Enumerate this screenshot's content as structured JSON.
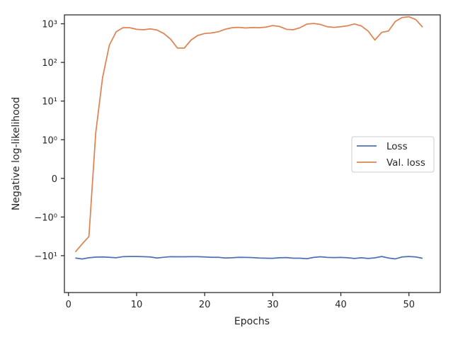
{
  "chart_data": {
    "type": "line",
    "xlabel": "Epochs",
    "ylabel": "Negative log-likelihood",
    "xlim": [
      -0.6,
      54.6
    ],
    "ylim": [
      -90,
      1700
    ],
    "yscale": "symlog",
    "linthresh": 1,
    "x_ticks": [
      0,
      10,
      20,
      30,
      40,
      50
    ],
    "x_tick_labels": [
      "0",
      "10",
      "20",
      "30",
      "40",
      "50"
    ],
    "y_ticks": [
      -10,
      -1,
      0,
      1,
      10,
      100,
      1000
    ],
    "y_tick_labels": [
      "−10¹",
      "−10⁰",
      "0",
      "10⁰",
      "10¹",
      "10²",
      "10³"
    ],
    "grid": false,
    "legend_position": "center-right",
    "colors": {
      "loss": "#4c72b0",
      "val_loss": "#dd8452",
      "axes": "#262626"
    },
    "x": [
      1,
      2,
      3,
      4,
      5,
      6,
      7,
      8,
      9,
      10,
      11,
      12,
      13,
      14,
      15,
      16,
      17,
      18,
      19,
      20,
      21,
      22,
      23,
      24,
      25,
      26,
      27,
      28,
      29,
      30,
      31,
      32,
      33,
      34,
      35,
      36,
      37,
      38,
      39,
      40,
      41,
      42,
      43,
      44,
      45,
      46,
      47,
      48,
      49,
      50,
      51,
      52
    ],
    "series": [
      {
        "name": "Loss",
        "values": [
          -11.5,
          -12.2,
          -11.3,
          -10.9,
          -10.8,
          -11.0,
          -11.3,
          -10.6,
          -10.5,
          -10.5,
          -10.6,
          -10.8,
          -11.5,
          -11.0,
          -10.6,
          -10.7,
          -10.7,
          -10.6,
          -10.6,
          -10.8,
          -11.0,
          -11.0,
          -11.5,
          -11.3,
          -11.0,
          -11.1,
          -11.2,
          -11.5,
          -11.6,
          -11.7,
          -11.3,
          -11.2,
          -11.6,
          -11.6,
          -12.0,
          -11.1,
          -10.7,
          -11.1,
          -11.2,
          -11.1,
          -11.3,
          -11.8,
          -11.3,
          -11.8,
          -11.4,
          -10.5,
          -11.5,
          -12.1,
          -10.8,
          -10.5,
          -10.8,
          -11.7
        ]
      },
      {
        "name": "Val. loss",
        "values": [
          -8.0,
          -5.0,
          -3.2,
          1.5,
          40,
          280,
          620,
          790,
          790,
          720,
          700,
          740,
          690,
          560,
          400,
          235,
          235,
          380,
          500,
          560,
          580,
          620,
          720,
          790,
          810,
          780,
          800,
          790,
          820,
          900,
          850,
          720,
          700,
          790,
          980,
          1020,
          960,
          840,
          810,
          840,
          890,
          990,
          880,
          650,
          380,
          600,
          650,
          1150,
          1450,
          1520,
          1290,
          820
        ]
      }
    ]
  }
}
